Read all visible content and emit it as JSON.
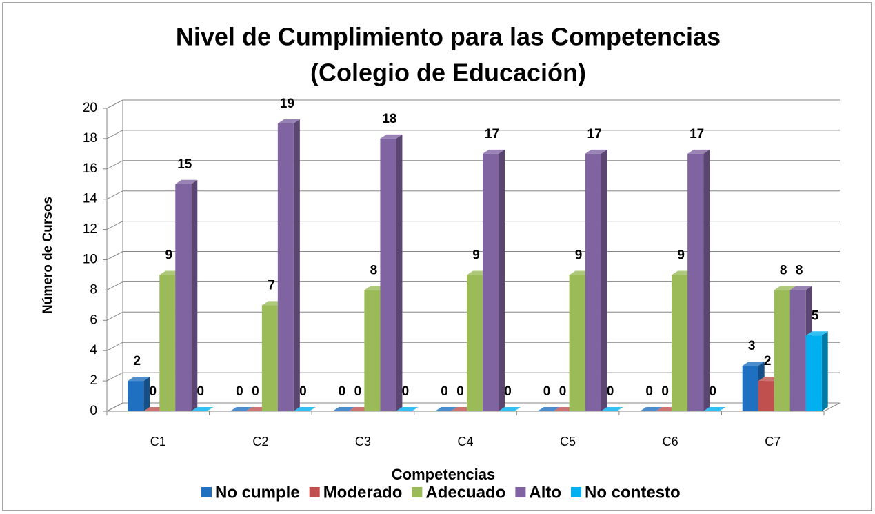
{
  "chart_data": {
    "type": "bar",
    "title": [
      "Nivel de Cumplimiento para las Competencias",
      "(Colegio de Educación)"
    ],
    "y_axis_label": "Número de Cursos",
    "x_axis_label": "Competencias",
    "categories": [
      "C1",
      "C2",
      "C3",
      "C4",
      "C5",
      "C6",
      "C7"
    ],
    "series": [
      {
        "name": "No cumple",
        "color": "#1f70c1",
        "values": [
          2,
          0,
          0,
          0,
          0,
          0,
          3
        ]
      },
      {
        "name": "Moderado",
        "color": "#c0504d",
        "values": [
          0,
          0,
          0,
          0,
          0,
          0,
          2
        ]
      },
      {
        "name": "Adecuado",
        "color": "#9bbb59",
        "values": [
          9,
          7,
          8,
          9,
          9,
          9,
          8
        ]
      },
      {
        "name": "Alto",
        "color": "#8064a2",
        "values": [
          15,
          19,
          18,
          17,
          17,
          17,
          8
        ]
      },
      {
        "name": "No contesto",
        "color": "#00b0f0",
        "values": [
          0,
          0,
          0,
          0,
          0,
          0,
          5
        ]
      }
    ],
    "ylim": [
      0,
      20
    ],
    "yticks": [
      0,
      2,
      4,
      6,
      8,
      10,
      12,
      14,
      16,
      18,
      20
    ],
    "grid": true,
    "legend": "bottom"
  }
}
